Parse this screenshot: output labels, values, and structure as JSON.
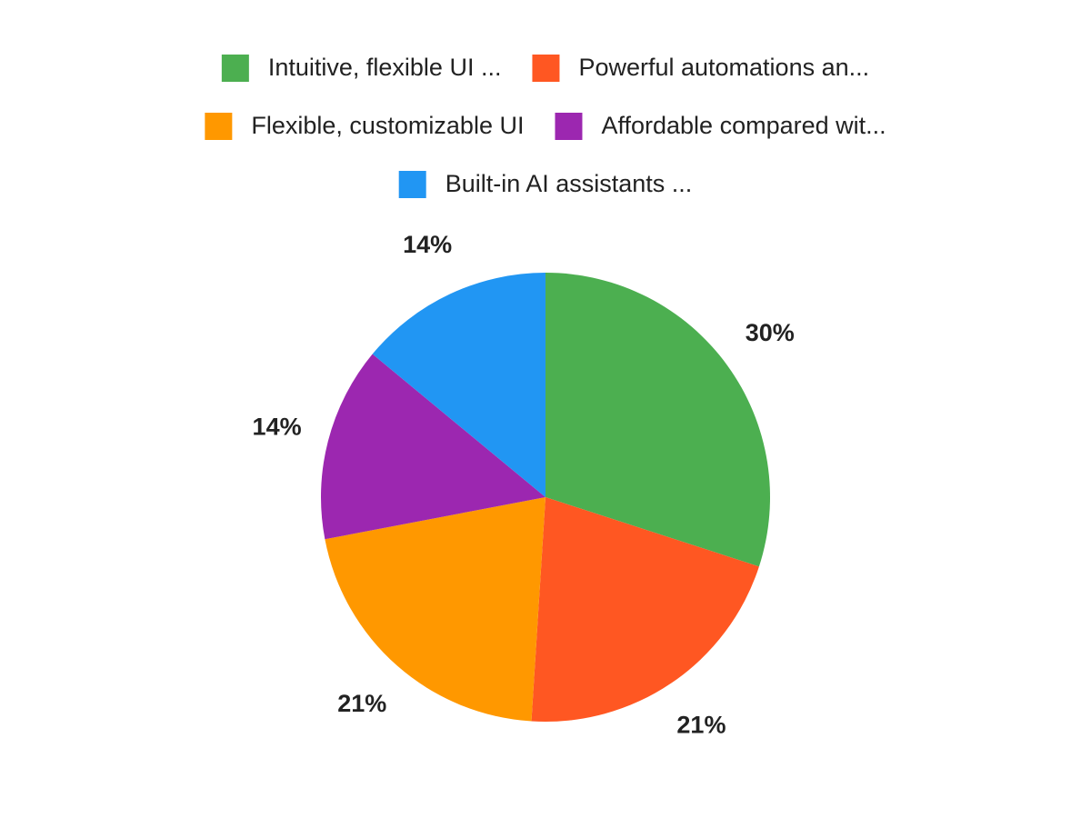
{
  "chart_data": {
    "type": "pie",
    "categories": [
      "Intuitive, flexible UI ...",
      "Powerful automations an...",
      "Flexible, customizable UI",
      "Affordable compared wit...",
      "Built-in AI assistants ..."
    ],
    "values": [
      30,
      21,
      21,
      14,
      14
    ],
    "value_labels": [
      "30%",
      "21%",
      "21%",
      "14%",
      "14%"
    ],
    "colors": [
      "#4caf50",
      "#ff5722",
      "#ff9800",
      "#9c27b0",
      "#2196f3"
    ],
    "legend": "top"
  }
}
